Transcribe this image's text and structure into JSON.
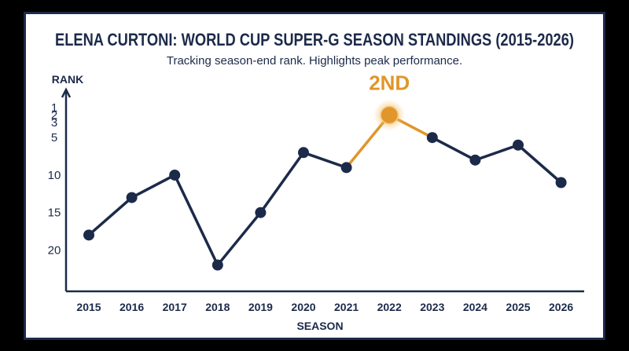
{
  "chart_data": {
    "type": "line",
    "title": "ELENA CURTONI: WORLD CUP SUPER-G SEASON STANDINGS (2015-2026)",
    "subtitle": "Tracking season-end rank. Highlights peak performance.",
    "xlabel": "SEASON",
    "ylabel": "RANK",
    "x": [
      "2015",
      "2016",
      "2017",
      "2018",
      "2019",
      "2020",
      "2021",
      "2022",
      "2023",
      "2024",
      "2025",
      "2026"
    ],
    "series": [
      {
        "values": [
          18,
          13,
          10,
          22,
          15,
          7,
          9,
          2,
          5,
          8,
          6,
          11
        ]
      }
    ],
    "yticks": [
      1,
      2,
      3,
      5,
      10,
      15,
      20
    ],
    "y_axis_inverted": true,
    "peak": {
      "season": "2022",
      "rank": 2,
      "label": "2ND"
    },
    "colors": {
      "line": "#1c2a4a",
      "highlight": "#e0962a",
      "glow": "#f3b860"
    }
  }
}
